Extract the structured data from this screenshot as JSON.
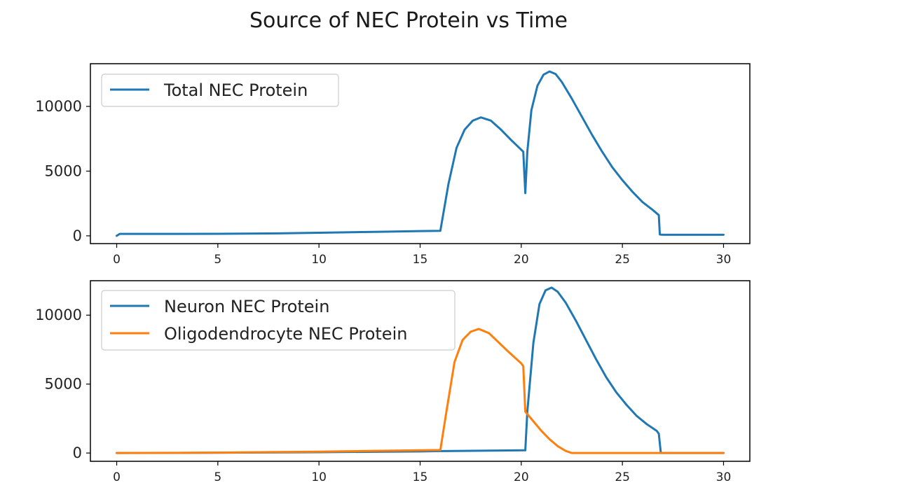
{
  "title": "Source of NEC Protein vs Time",
  "colors": {
    "blue": "#1f77b4",
    "orange": "#ff7f0e",
    "axis": "#000000"
  },
  "chart_data": [
    {
      "type": "line",
      "title": "",
      "xlabel": "",
      "ylabel": "",
      "xlim": [
        -1.3,
        31.3
      ],
      "ylim": [
        -600,
        13300
      ],
      "x_ticks": [
        "0",
        "5",
        "10",
        "15",
        "20",
        "25",
        "30"
      ],
      "y_ticks": [
        "0",
        "5000",
        "10000"
      ],
      "legend": "upper-left",
      "grid": false,
      "series": [
        {
          "name": "Total NEC Protein",
          "color": "#1f77b4",
          "x": [
            0,
            0.15,
            2,
            5,
            8,
            10,
            13,
            15,
            16,
            16.4,
            16.8,
            17.2,
            17.6,
            18,
            18.5,
            19,
            19.5,
            20.1,
            20.2,
            20.3,
            20.5,
            20.8,
            21.1,
            21.4,
            21.7,
            22,
            22.5,
            23,
            23.5,
            24,
            24.5,
            25,
            25.5,
            26,
            26.5,
            26.8,
            26.85,
            27,
            28,
            29,
            30
          ],
          "y": [
            0,
            150,
            150,
            160,
            190,
            240,
            310,
            370,
            390,
            4000,
            6800,
            8200,
            8900,
            9150,
            8900,
            8200,
            7400,
            6500,
            3300,
            6500,
            9700,
            11600,
            12450,
            12700,
            12500,
            11900,
            10600,
            9200,
            7800,
            6500,
            5300,
            4300,
            3400,
            2600,
            2000,
            1600,
            100,
            80,
            80,
            80,
            80
          ]
        }
      ]
    },
    {
      "type": "line",
      "title": "",
      "xlabel": "",
      "ylabel": "",
      "xlim": [
        -1.3,
        31.3
      ],
      "ylim": [
        -600,
        12500
      ],
      "x_ticks": [
        "0",
        "5",
        "10",
        "15",
        "20",
        "25",
        "30"
      ],
      "y_ticks": [
        "0",
        "5000",
        "10000"
      ],
      "legend": "upper-left",
      "grid": false,
      "series": [
        {
          "name": "Neuron NEC Protein",
          "color": "#1f77b4",
          "x": [
            0,
            5,
            10,
            15,
            16,
            20.2,
            20.3,
            20.6,
            20.9,
            21.2,
            21.5,
            21.8,
            22.2,
            22.7,
            23.2,
            23.7,
            24.2,
            24.7,
            25.2,
            25.7,
            26.2,
            26.7,
            26.8,
            26.9,
            27,
            28,
            30
          ],
          "y": [
            0,
            20,
            60,
            120,
            140,
            200,
            3000,
            8000,
            10800,
            11800,
            12000,
            11700,
            10900,
            9600,
            8200,
            6800,
            5500,
            4400,
            3500,
            2700,
            2100,
            1600,
            1400,
            0,
            0,
            0,
            0
          ]
        },
        {
          "name": "Oligodendrocyte NEC Protein",
          "color": "#ff7f0e",
          "x": [
            0,
            5,
            10,
            15,
            16,
            16.3,
            16.7,
            17.1,
            17.5,
            17.9,
            18.4,
            18.9,
            19.4,
            20,
            20.1,
            20.2,
            20.6,
            21,
            21.4,
            21.8,
            22.2,
            22.5,
            25,
            30
          ],
          "y": [
            0,
            30,
            100,
            200,
            220,
            3000,
            6600,
            8200,
            8800,
            9000,
            8700,
            8000,
            7300,
            6500,
            6300,
            3000,
            2300,
            1600,
            1000,
            500,
            150,
            0,
            0,
            0
          ]
        }
      ]
    }
  ]
}
